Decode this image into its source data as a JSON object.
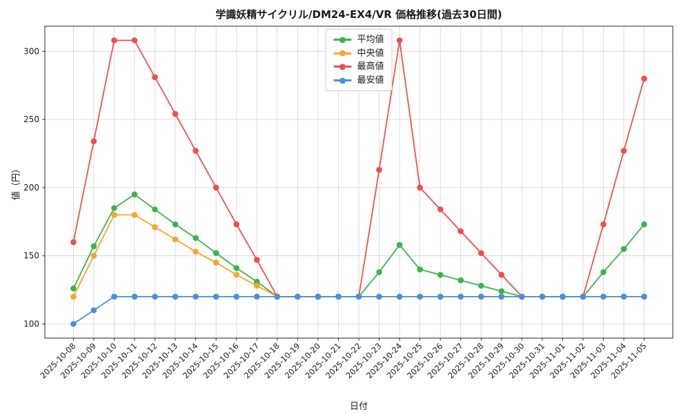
{
  "chart_data": {
    "type": "line",
    "title": "学識妖精サイクリル/DM24-EX4/VR 価格推移(過去30日間)",
    "xlabel": "日付",
    "ylabel": "値（円）",
    "grid": true,
    "legend_position": "top-center",
    "yticks": [
      100,
      150,
      200,
      250,
      300
    ],
    "ylim": [
      89.6,
      318.4
    ],
    "x": [
      "2025-10-08",
      "2025-10-09",
      "2025-10-10",
      "2025-10-11",
      "2025-10-12",
      "2025-10-13",
      "2025-10-14",
      "2025-10-15",
      "2025-10-16",
      "2025-10-17",
      "2025-10-18",
      "2025-10-19",
      "2025-10-20",
      "2025-10-21",
      "2025-10-22",
      "2025-10-23",
      "2025-10-24",
      "2025-10-25",
      "2025-10-26",
      "2025-10-27",
      "2025-10-28",
      "2025-10-29",
      "2025-10-30",
      "2025-10-31",
      "2025-11-01",
      "2025-11-02",
      "2025-11-03",
      "2025-11-04",
      "2025-11-05"
    ],
    "series": [
      {
        "name": "平均値",
        "color": "#3cb44c",
        "values": [
          126,
          157,
          185,
          195,
          184,
          173,
          163,
          152,
          141,
          131,
          120,
          120,
          120,
          120,
          120,
          138,
          158,
          140,
          136,
          132,
          128,
          124,
          120,
          120,
          120,
          120,
          138,
          155,
          173
        ]
      },
      {
        "name": "中央値",
        "color": "#f3a72c",
        "values": [
          120,
          150,
          180,
          180,
          171,
          162,
          153,
          145,
          136,
          128,
          120,
          120,
          120,
          120,
          120,
          120,
          120,
          120,
          120,
          120,
          120,
          120,
          120,
          120,
          120,
          120,
          120,
          120,
          120
        ]
      },
      {
        "name": "最高値",
        "color": "#ef4e4e",
        "values": [
          160,
          234,
          308,
          308,
          281,
          254,
          227,
          200,
          173,
          147,
          120,
          120,
          120,
          120,
          120,
          213,
          308,
          200,
          184,
          168,
          152,
          136,
          120,
          120,
          120,
          120,
          173,
          227,
          280
        ]
      },
      {
        "name": "最安値",
        "color": "#4a90d9",
        "values": [
          100,
          110,
          120,
          120,
          120,
          120,
          120,
          120,
          120,
          120,
          120,
          120,
          120,
          120,
          120,
          120,
          120,
          120,
          120,
          120,
          120,
          120,
          120,
          120,
          120,
          120,
          120,
          120,
          120
        ]
      }
    ]
  }
}
